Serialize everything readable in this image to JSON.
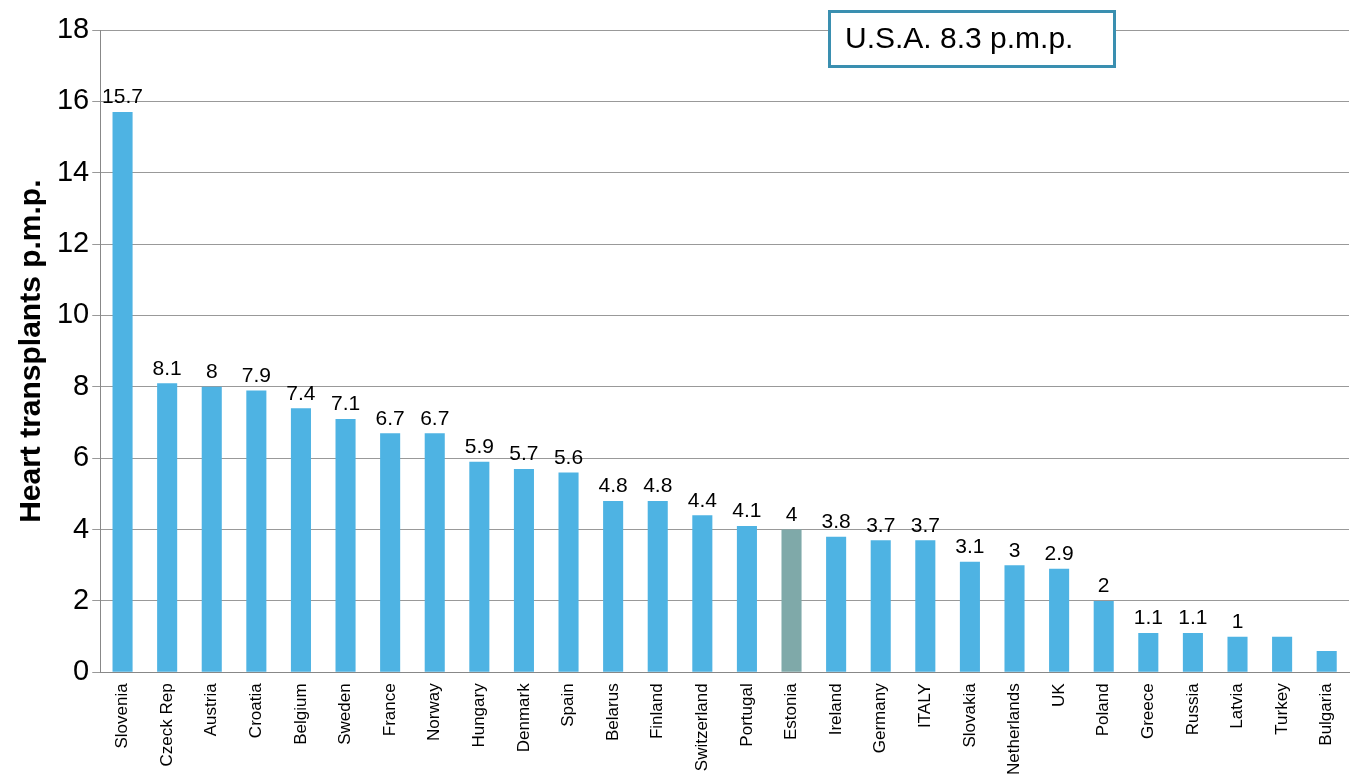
{
  "chart_data": {
    "type": "bar",
    "ylabel": "Heart transplants p.m.p.",
    "categories": [
      "Slovenia",
      "Czeck Rep",
      "Austria",
      "Croatia",
      "Belgium",
      "Sweden",
      "France",
      "Norway",
      "Hungary",
      "Denmark",
      "Spain",
      "Belarus",
      "Finland",
      "Switzerland",
      "Portugal",
      "Estonia",
      "Ireland",
      "Germany",
      "ITALY",
      "Slovakia",
      "Netherlands",
      "UK",
      "Poland",
      "Greece",
      "Russia",
      "Latvia",
      "Turkey",
      "Bulgaria"
    ],
    "values": [
      15.7,
      8.1,
      8,
      7.9,
      7.4,
      7.1,
      6.7,
      6.7,
      5.9,
      5.7,
      5.6,
      4.8,
      4.8,
      4.4,
      4.1,
      4,
      3.8,
      3.7,
      3.7,
      3.1,
      3,
      2.9,
      2,
      1.1,
      1.1,
      1,
      1,
      0.6
    ],
    "value_labels": [
      "15.7",
      "8.1",
      "8",
      "7.9",
      "7.4",
      "7.1",
      "6.7",
      "6.7",
      "5.9",
      "5.7",
      "5.6",
      "4.8",
      "4.8",
      "4.4",
      "4.1",
      "4",
      "3.8",
      "3.7",
      "3.7",
      "3.1",
      "3",
      "2.9",
      "2",
      "1.1",
      "1.1",
      "1",
      null,
      null
    ],
    "colors": [
      "#4eb3e3",
      "#4eb3e3",
      "#4eb3e3",
      "#4eb3e3",
      "#4eb3e3",
      "#4eb3e3",
      "#4eb3e3",
      "#4eb3e3",
      "#4eb3e3",
      "#4eb3e3",
      "#4eb3e3",
      "#4eb3e3",
      "#4eb3e3",
      "#4eb3e3",
      "#4eb3e3",
      "#7fa9a9",
      "#4eb3e3",
      "#4eb3e3",
      "#4eb3e3",
      "#4eb3e3",
      "#4eb3e3",
      "#4eb3e3",
      "#4eb3e3",
      "#4eb3e3",
      "#4eb3e3",
      "#4eb3e3",
      "#4eb3e3",
      "#4eb3e3"
    ],
    "ylim": [
      0,
      18
    ],
    "yticks": [
      0,
      2,
      4,
      6,
      8,
      10,
      12,
      14,
      16,
      18
    ],
    "grid": "y",
    "legend": false,
    "annotations": [
      "U.S.A. 8.3 p.m.p."
    ]
  }
}
